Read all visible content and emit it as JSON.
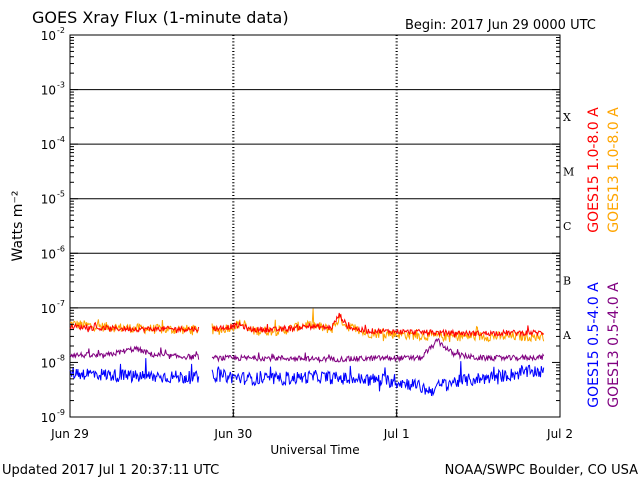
{
  "header": {
    "title": "GOES Xray Flux (1-minute data)",
    "begin": "Begin:  2017 Jun 29 0000 UTC"
  },
  "footer": {
    "updated": "Updated 2017 Jul  1 20:37:11 UTC",
    "credit": "NOAA/SWPC Boulder, CO USA"
  },
  "colors": {
    "goes15_long": "#ff0000",
    "goes13_long": "#ffa500",
    "goes15_short": "#0000ff",
    "goes13_short": "#800080"
  },
  "chart_data": {
    "type": "line",
    "title": "GOES Xray Flux (1-minute data)",
    "xlabel": "Universal Time",
    "ylabel": "Watts m⁻²",
    "yscale": "log",
    "ylim": [
      1e-09,
      0.01
    ],
    "xlim": [
      0,
      3
    ],
    "x_unit": "days since 2017 Jun 29 0000 UTC",
    "x_ticks": [
      {
        "value": 0,
        "label": "Jun 29"
      },
      {
        "value": 1,
        "label": "Jun 30"
      },
      {
        "value": 2,
        "label": "Jul 1"
      },
      {
        "value": 3,
        "label": "Jul 2"
      }
    ],
    "y_ticks": [
      {
        "exp": -2,
        "label": "10",
        "sup": "-2"
      },
      {
        "exp": -3,
        "label": "10",
        "sup": "-3"
      },
      {
        "exp": -4,
        "label": "10",
        "sup": "-4"
      },
      {
        "exp": -5,
        "label": "10",
        "sup": "-5"
      },
      {
        "exp": -6,
        "label": "10",
        "sup": "-6"
      },
      {
        "exp": -7,
        "label": "10",
        "sup": "-7"
      },
      {
        "exp": -8,
        "label": "10",
        "sup": "-8"
      },
      {
        "exp": -9,
        "label": "10",
        "sup": "-9"
      }
    ],
    "flare_classes": [
      {
        "label": "X",
        "exp": -3.5
      },
      {
        "label": "M",
        "exp": -4.5
      },
      {
        "label": "C",
        "exp": -5.5
      },
      {
        "label": "B",
        "exp": -6.5
      },
      {
        "label": "A",
        "exp": -7.5
      }
    ],
    "grid": true,
    "legend_placement": "right-outside",
    "series": [
      {
        "name": "GOES15 1.0-8.0 A",
        "color": "#ff0000",
        "points": [
          [
            0,
            4.6e-08
          ],
          [
            0.2,
            4.2e-08
          ],
          [
            0.4,
            4.1e-08
          ],
          [
            0.6,
            4.1e-08
          ],
          [
            0.8,
            4.1e-08
          ],
          [
            0.9,
            4.2e-08
          ],
          [
            1.05,
            4.8e-08
          ],
          [
            1.1,
            4e-08
          ],
          [
            1.3,
            4e-08
          ],
          [
            1.45,
            4.6e-08
          ],
          [
            1.6,
            4.3e-08
          ],
          [
            1.65,
            7.5e-08
          ],
          [
            1.7,
            4.5e-08
          ],
          [
            1.8,
            3.8e-08
          ],
          [
            2.0,
            3.7e-08
          ],
          [
            2.25,
            3.5e-08
          ],
          [
            2.5,
            3.4e-08
          ],
          [
            2.7,
            3.5e-08
          ],
          [
            2.9,
            3.5e-08
          ]
        ],
        "gaps": [
          [
            0.79,
            0.87
          ]
        ]
      },
      {
        "name": "GOES13 1.0-8.0 A",
        "color": "#ffa500",
        "points": [
          [
            0,
            5.1e-08
          ],
          [
            0.2,
            4.5e-08
          ],
          [
            0.4,
            4.2e-08
          ],
          [
            0.6,
            4e-08
          ],
          [
            0.8,
            4e-08
          ],
          [
            0.9,
            3.8e-08
          ],
          [
            1.05,
            5.2e-08
          ],
          [
            1.1,
            3.8e-08
          ],
          [
            1.3,
            3.8e-08
          ],
          [
            1.45,
            5e-08
          ],
          [
            1.6,
            4e-08
          ],
          [
            1.65,
            6.5e-08
          ],
          [
            1.7,
            4.6e-08
          ],
          [
            1.8,
            3.5e-08
          ],
          [
            2.0,
            3.3e-08
          ],
          [
            2.25,
            3e-08
          ],
          [
            2.5,
            3e-08
          ],
          [
            2.7,
            3e-08
          ],
          [
            2.9,
            3e-08
          ]
        ],
        "gaps": [
          [
            0.79,
            0.87
          ]
        ]
      },
      {
        "name": "GOES15 0.5-4.0 A",
        "color": "#0000ff",
        "points": [
          [
            0,
            6.5e-09
          ],
          [
            0.2,
            6e-09
          ],
          [
            0.4,
            5.5e-09
          ],
          [
            0.6,
            5.5e-09
          ],
          [
            0.8,
            5.2e-09
          ],
          [
            0.9,
            5.8e-09
          ],
          [
            1.1,
            5e-09
          ],
          [
            1.3,
            5e-09
          ],
          [
            1.5,
            5.5e-09
          ],
          [
            1.7,
            5e-09
          ],
          [
            1.9,
            4.8e-09
          ],
          [
            2.1,
            4e-09
          ],
          [
            2.2,
            3e-09
          ],
          [
            2.3,
            4.2e-09
          ],
          [
            2.5,
            5e-09
          ],
          [
            2.7,
            6e-09
          ],
          [
            2.85,
            7e-09
          ],
          [
            2.9,
            6.5e-09
          ]
        ],
        "gaps": [
          [
            0.79,
            0.87
          ]
        ]
      },
      {
        "name": "GOES13 0.5-4.0 A",
        "color": "#800080",
        "points": [
          [
            0,
            1.4e-08
          ],
          [
            0.2,
            1.3e-08
          ],
          [
            0.4,
            1.8e-08
          ],
          [
            0.5,
            1.4e-08
          ],
          [
            0.6,
            1.3e-08
          ],
          [
            0.79,
            1.25e-08
          ],
          [
            0.87,
            1.2e-08
          ],
          [
            1.1,
            1.2e-08
          ],
          [
            1.3,
            1.2e-08
          ],
          [
            1.5,
            1.15e-08
          ],
          [
            1.7,
            1.15e-08
          ],
          [
            1.9,
            1.2e-08
          ],
          [
            2.15,
            1.2e-08
          ],
          [
            2.25,
            2.5e-08
          ],
          [
            2.35,
            1.4e-08
          ],
          [
            2.5,
            1.2e-08
          ],
          [
            2.7,
            1.2e-08
          ],
          [
            2.9,
            1.25e-08
          ]
        ],
        "gaps": [
          [
            0.79,
            0.87
          ]
        ]
      }
    ]
  }
}
